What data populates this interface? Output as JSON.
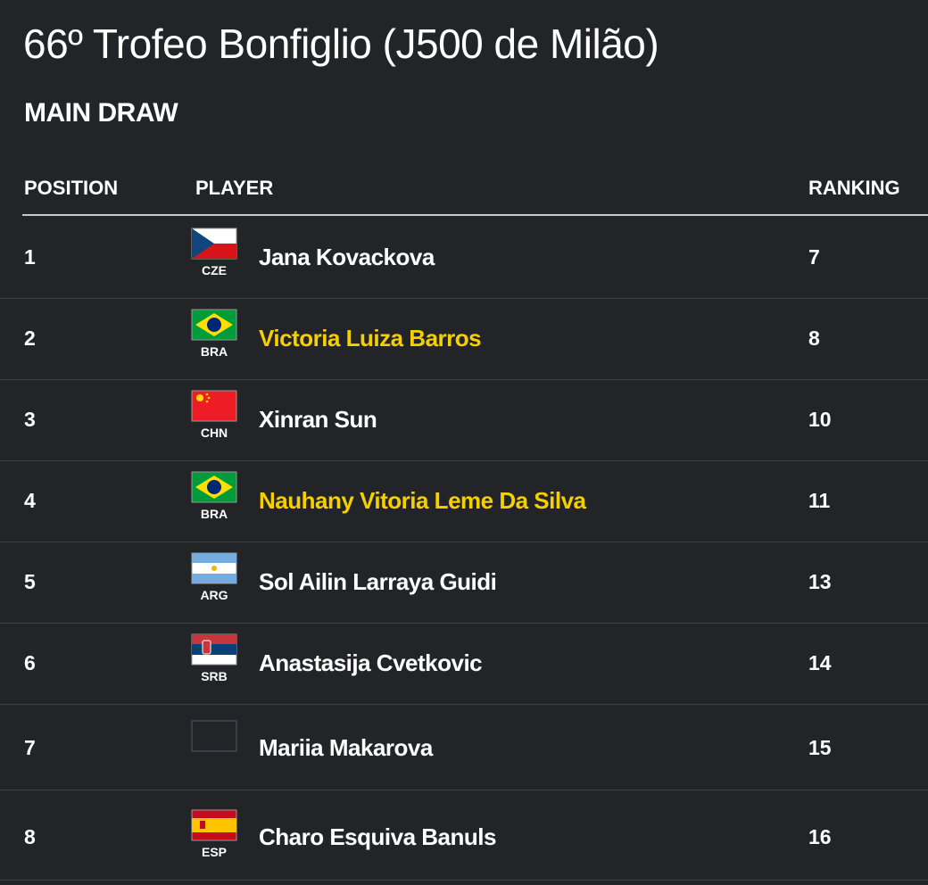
{
  "header": {
    "title": "66º Trofeo Bonfiglio (J500 de Milão)",
    "subtitle": "MAIN DRAW"
  },
  "table": {
    "columns": [
      "POSITION",
      "PLAYER",
      "RANKING"
    ],
    "rows": [
      {
        "position": 1,
        "flag": "CZE",
        "player": "Jana Kovackova",
        "ranking": 7
      },
      {
        "position": 2,
        "flag": "BRA",
        "player": "Victoria Luiza Barros",
        "ranking": 8
      },
      {
        "position": 3,
        "flag": "CHN",
        "player": "Xinran Sun",
        "ranking": 10
      },
      {
        "position": 4,
        "flag": "BRA",
        "player": "Nauhany Vitoria Leme Da Silva",
        "ranking": 11
      },
      {
        "position": 5,
        "flag": "ARG",
        "player": "Sol Ailin Larraya Guidi",
        "ranking": 13
      },
      {
        "position": 6,
        "flag": "SRB",
        "player": "Anastasija Cvetkovic",
        "ranking": 14
      },
      {
        "position": 7,
        "player": "Mariia Makarova",
        "ranking": 15
      },
      {
        "position": 8,
        "flag": "ESP",
        "player": "Charo Esquiva Banuls",
        "ranking": 16
      }
    ]
  }
}
